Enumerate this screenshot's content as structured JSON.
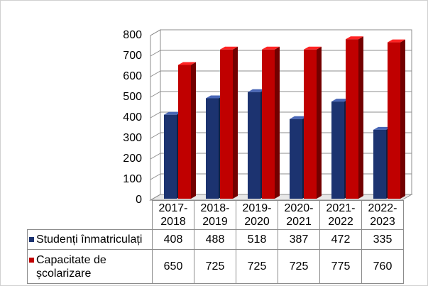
{
  "chart_data": {
    "type": "bar3d",
    "categories": [
      "2017-2018",
      "2018-2019",
      "2019-2020",
      "2020-2021",
      "2021-2022",
      "2022-2023"
    ],
    "series": [
      {
        "name": "Studenți înmatriculați",
        "color": "#1c3370",
        "values": [
          408,
          488,
          518,
          387,
          472,
          335
        ]
      },
      {
        "name": "Capacitate de școlarizare",
        "color": "#c00000",
        "values": [
          650,
          725,
          725,
          725,
          775,
          760
        ]
      }
    ],
    "ylim": [
      0,
      800
    ],
    "yticks": [
      0,
      100,
      200,
      300,
      400,
      500,
      600,
      700,
      800
    ],
    "grid": true,
    "legend": "table"
  }
}
